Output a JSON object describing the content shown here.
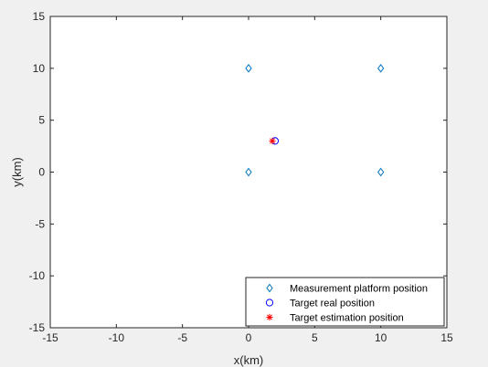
{
  "chart_data": {
    "type": "scatter",
    "xlabel": "x(km)",
    "ylabel": "y(km)",
    "xlim": [
      -15,
      15
    ],
    "ylim": [
      -15,
      15
    ],
    "xticks": [
      -15,
      -10,
      -5,
      0,
      5,
      10,
      15
    ],
    "yticks": [
      -15,
      -10,
      -5,
      0,
      5,
      10,
      15
    ],
    "grid": false,
    "legend_position": "bottom-right",
    "series": [
      {
        "name": "Measurement platform position",
        "marker": "diamond",
        "color": "#0072BD",
        "x": [
          0,
          10,
          0,
          10
        ],
        "y": [
          10,
          10,
          0,
          0
        ]
      },
      {
        "name": "Target real position",
        "marker": "circle",
        "color": "#0000FF",
        "x": [
          2
        ],
        "y": [
          3
        ]
      },
      {
        "name": "Target estimation position",
        "marker": "asterisk",
        "color": "#FF0000",
        "x": [
          1.8
        ],
        "y": [
          3
        ]
      }
    ]
  }
}
